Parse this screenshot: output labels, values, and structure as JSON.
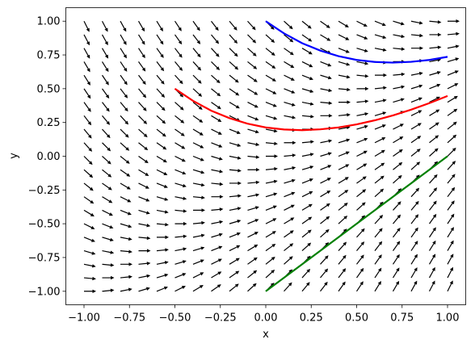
{
  "chart_data": {
    "type": "quiver",
    "xlabel": "x",
    "ylabel": "y",
    "xlim": [
      -1.1,
      1.1
    ],
    "ylim": [
      -1.1,
      1.1
    ],
    "xticks": [
      {
        "value": -1,
        "label": "−1.00"
      },
      {
        "value": -0.75,
        "label": "−0.75"
      },
      {
        "value": -0.5,
        "label": "−0.50"
      },
      {
        "value": -0.25,
        "label": "−0.25"
      },
      {
        "value": 0,
        "label": "0.00"
      },
      {
        "value": 0.25,
        "label": "0.25"
      },
      {
        "value": 0.5,
        "label": "0.50"
      },
      {
        "value": 0.75,
        "label": "0.75"
      },
      {
        "value": 1,
        "label": "1.00"
      }
    ],
    "yticks": [
      {
        "value": -1,
        "label": "−1.00"
      },
      {
        "value": -0.75,
        "label": "−0.75"
      },
      {
        "value": -0.5,
        "label": "−0.50"
      },
      {
        "value": -0.25,
        "label": "−0.25"
      },
      {
        "value": 0,
        "label": "0.00"
      },
      {
        "value": 0.25,
        "label": "0.25"
      },
      {
        "value": 0.5,
        "label": "0.50"
      },
      {
        "value": 0.75,
        "label": "0.75"
      },
      {
        "value": 1,
        "label": "1.00"
      }
    ],
    "field": {
      "color": "#000000",
      "x": [
        -1,
        -0.9,
        -0.8,
        -0.7,
        -0.6,
        -0.5,
        -0.4,
        -0.3,
        -0.2,
        -0.1,
        0,
        0.1,
        0.2,
        0.3,
        0.4,
        0.5,
        0.6,
        0.7,
        0.8,
        0.9,
        1
      ],
      "y": [
        -1,
        -0.9,
        -0.8,
        -0.7,
        -0.6,
        -0.5,
        -0.4,
        -0.3,
        -0.2,
        -0.1,
        0,
        0.1,
        0.2,
        0.3,
        0.4,
        0.5,
        0.6,
        0.7,
        0.8,
        0.9,
        1
      ],
      "slopes": [
        [
          0,
          0.1,
          0.2,
          0.3,
          0.4,
          0.5,
          0.6,
          0.7,
          0.8,
          0.9,
          1,
          1.1,
          1.2,
          1.3,
          1.4,
          1.5,
          1.6,
          1.7,
          1.8,
          1.9,
          2
        ],
        [
          -0.1,
          0,
          0.1,
          0.2,
          0.3,
          0.4,
          0.5,
          0.6,
          0.7,
          0.8,
          0.9,
          1,
          1.1,
          1.2,
          1.3,
          1.4,
          1.5,
          1.6,
          1.7,
          1.8,
          1.9
        ],
        [
          -0.2,
          -0.1,
          0,
          0.1,
          0.2,
          0.3,
          0.4,
          0.5,
          0.6,
          0.7,
          0.8,
          0.9,
          1,
          1.1,
          1.2,
          1.3,
          1.4,
          1.5,
          1.6,
          1.7,
          1.8
        ],
        [
          -0.3,
          -0.2,
          -0.1,
          0,
          0.1,
          0.2,
          0.3,
          0.4,
          0.5,
          0.6,
          0.7,
          0.8,
          0.9,
          1,
          1.1,
          1.2,
          1.3,
          1.4,
          1.5,
          1.6,
          1.7
        ],
        [
          -0.4,
          -0.3,
          -0.2,
          -0.1,
          0,
          0.1,
          0.2,
          0.3,
          0.4,
          0.5,
          0.6,
          0.7,
          0.8,
          0.9,
          1,
          1.1,
          1.2,
          1.3,
          1.4,
          1.5,
          1.6
        ],
        [
          -0.5,
          -0.4,
          -0.3,
          -0.2,
          -0.1,
          0,
          0.1,
          0.2,
          0.3,
          0.4,
          0.5,
          0.6,
          0.7,
          0.8,
          0.9,
          1,
          1.1,
          1.2,
          1.3,
          1.4,
          1.5
        ],
        [
          -0.6,
          -0.5,
          -0.4,
          -0.3,
          -0.2,
          -0.1,
          0,
          0.1,
          0.2,
          0.3,
          0.4,
          0.5,
          0.6,
          0.7,
          0.8,
          0.9,
          1,
          1.1,
          1.2,
          1.3,
          1.4
        ],
        [
          -0.7,
          -0.6,
          -0.5,
          -0.4,
          -0.3,
          -0.2,
          -0.1,
          0,
          0.1,
          0.2,
          0.3,
          0.4,
          0.5,
          0.6,
          0.7,
          0.8,
          0.9,
          1,
          1.1,
          1.2,
          1.3
        ],
        [
          -0.8,
          -0.7,
          -0.6,
          -0.5,
          -0.4,
          -0.3,
          -0.2,
          -0.1,
          0,
          0.1,
          0.2,
          0.3,
          0.4,
          0.5,
          0.6,
          0.7,
          0.8,
          0.9,
          1,
          1.1,
          1.2
        ],
        [
          -0.9,
          -0.8,
          -0.7,
          -0.6,
          -0.5,
          -0.4,
          -0.3,
          -0.2,
          -0.1,
          0,
          0.1,
          0.2,
          0.3,
          0.4,
          0.5,
          0.6,
          0.7,
          0.8,
          0.9,
          1,
          1.1
        ],
        [
          -1,
          -0.9,
          -0.8,
          -0.7,
          -0.6,
          -0.5,
          -0.4,
          -0.3,
          -0.2,
          -0.1,
          0,
          0.1,
          0.2,
          0.3,
          0.4,
          0.5,
          0.6,
          0.7,
          0.8,
          0.9,
          1
        ],
        [
          -1.1,
          -1,
          -0.9,
          -0.8,
          -0.7,
          -0.6,
          -0.5,
          -0.4,
          -0.3,
          -0.2,
          -0.1,
          0,
          0.1,
          0.2,
          0.3,
          0.4,
          0.5,
          0.6,
          0.7,
          0.8,
          0.9
        ],
        [
          -1.2,
          -1.1,
          -1,
          -0.9,
          -0.8,
          -0.7,
          -0.6,
          -0.5,
          -0.4,
          -0.3,
          -0.2,
          -0.1,
          0,
          0.1,
          0.2,
          0.3,
          0.4,
          0.5,
          0.6,
          0.7,
          0.8
        ],
        [
          -1.3,
          -1.2,
          -1.1,
          -1,
          -0.9,
          -0.8,
          -0.7,
          -0.6,
          -0.5,
          -0.4,
          -0.3,
          -0.2,
          -0.1,
          0,
          0.1,
          0.2,
          0.3,
          0.4,
          0.5,
          0.6,
          0.7
        ],
        [
          -1.4,
          -1.3,
          -1.2,
          -1.1,
          -1,
          -0.9,
          -0.8,
          -0.7,
          -0.6,
          -0.5,
          -0.4,
          -0.3,
          -0.2,
          -0.1,
          0,
          0.1,
          0.2,
          0.3,
          0.4,
          0.5,
          0.6
        ],
        [
          -1.5,
          -1.4,
          -1.3,
          -1.2,
          -1.1,
          -1,
          -0.9,
          -0.8,
          -0.7,
          -0.6,
          -0.5,
          -0.4,
          -0.3,
          -0.2,
          -0.1,
          0,
          0.1,
          0.2,
          0.3,
          0.4,
          0.5
        ],
        [
          -1.6,
          -1.5,
          -1.4,
          -1.3,
          -1.2,
          -1.1,
          -1,
          -0.9,
          -0.8,
          -0.7,
          -0.6,
          -0.5,
          -0.4,
          -0.3,
          -0.2,
          -0.1,
          0,
          0.1,
          0.2,
          0.3,
          0.4
        ],
        [
          -1.7,
          -1.6,
          -1.5,
          -1.4,
          -1.3,
          -1.2,
          -1.1,
          -1,
          -0.9,
          -0.8,
          -0.7,
          -0.6,
          -0.5,
          -0.4,
          -0.3,
          -0.2,
          -0.1,
          0,
          0.1,
          0.2,
          0.3
        ],
        [
          -1.8,
          -1.7,
          -1.6,
          -1.5,
          -1.4,
          -1.3,
          -1.2,
          -1.1,
          -1,
          -0.9,
          -0.8,
          -0.7,
          -0.6,
          -0.5,
          -0.4,
          -0.3,
          -0.2,
          -0.1,
          0,
          0.1,
          0.2
        ],
        [
          -1.9,
          -1.8,
          -1.7,
          -1.6,
          -1.5,
          -1.4,
          -1.3,
          -1.2,
          -1.1,
          -1,
          -0.9,
          -0.8,
          -0.7,
          -0.6,
          -0.5,
          -0.4,
          -0.3,
          -0.2,
          -0.1,
          0,
          0.1
        ],
        [
          -2,
          -1.9,
          -1.8,
          -1.7,
          -1.6,
          -1.5,
          -1.4,
          -1.3,
          -1.2,
          -1.1,
          -1,
          -0.9,
          -0.8,
          -0.7,
          -0.6,
          -0.5,
          -0.4,
          -0.3,
          -0.2,
          -0.1,
          0
        ]
      ]
    },
    "series": [
      {
        "color": "#ff0000",
        "x": [
          -0.5,
          -0.4,
          -0.3,
          -0.2,
          -0.1,
          0,
          0.1,
          0.2,
          0.3,
          0.4,
          0.5,
          0.6,
          0.7,
          0.8,
          0.9,
          1
        ],
        "values": [
          0.5,
          0.41,
          0.337,
          0.282,
          0.241,
          0.213,
          0.198,
          0.193,
          0.199,
          0.213,
          0.236,
          0.266,
          0.302,
          0.345,
          0.393,
          0.446
        ]
      },
      {
        "color": "#0000ff",
        "x": [
          0,
          0.1,
          0.2,
          0.3,
          0.4,
          0.5,
          0.6,
          0.7,
          0.8,
          0.9,
          1
        ],
        "values": [
          1,
          0.91,
          0.837,
          0.782,
          0.741,
          0.713,
          0.698,
          0.693,
          0.699,
          0.713,
          0.736
        ]
      },
      {
        "color": "#008000",
        "x": [
          0,
          0.5,
          1
        ],
        "values": [
          -1,
          -0.5,
          0
        ]
      }
    ]
  }
}
